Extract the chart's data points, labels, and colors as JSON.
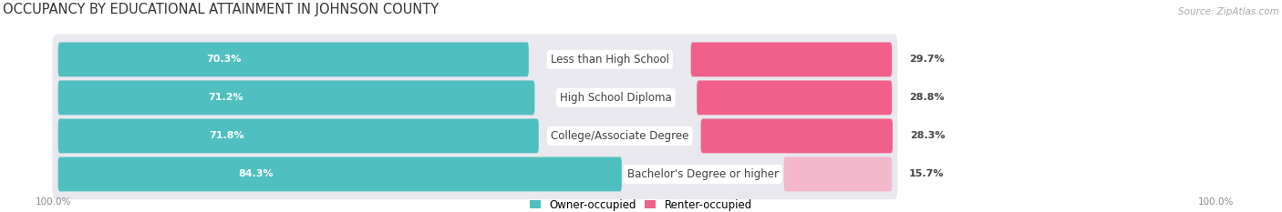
{
  "title": "OCCUPANCY BY EDUCATIONAL ATTAINMENT IN JOHNSON COUNTY",
  "source": "Source: ZipAtlas.com",
  "categories": [
    "Less than High School",
    "High School Diploma",
    "College/Associate Degree",
    "Bachelor's Degree or higher"
  ],
  "owner_values": [
    70.3,
    71.2,
    71.8,
    84.3
  ],
  "renter_values": [
    29.7,
    28.8,
    28.3,
    15.7
  ],
  "owner_color": "#50BFBF",
  "renter_colors": [
    "#F0608A",
    "#F0608A",
    "#F0608A",
    "#F4B8CC"
  ],
  "bar_bg_color": "#E8E8EE",
  "row_bg_colors": [
    "#F0F0F4",
    "#E8E8EE"
  ],
  "owner_label": "Owner-occupied",
  "renter_label": "Renter-occupied",
  "axis_label_left": "100.0%",
  "axis_label_right": "100.0%",
  "title_fontsize": 10.5,
  "source_fontsize": 7.5,
  "bar_label_fontsize": 8,
  "cat_label_fontsize": 8.5,
  "bar_height": 0.6,
  "figsize": [
    14.06,
    2.33
  ],
  "dpi": 100
}
